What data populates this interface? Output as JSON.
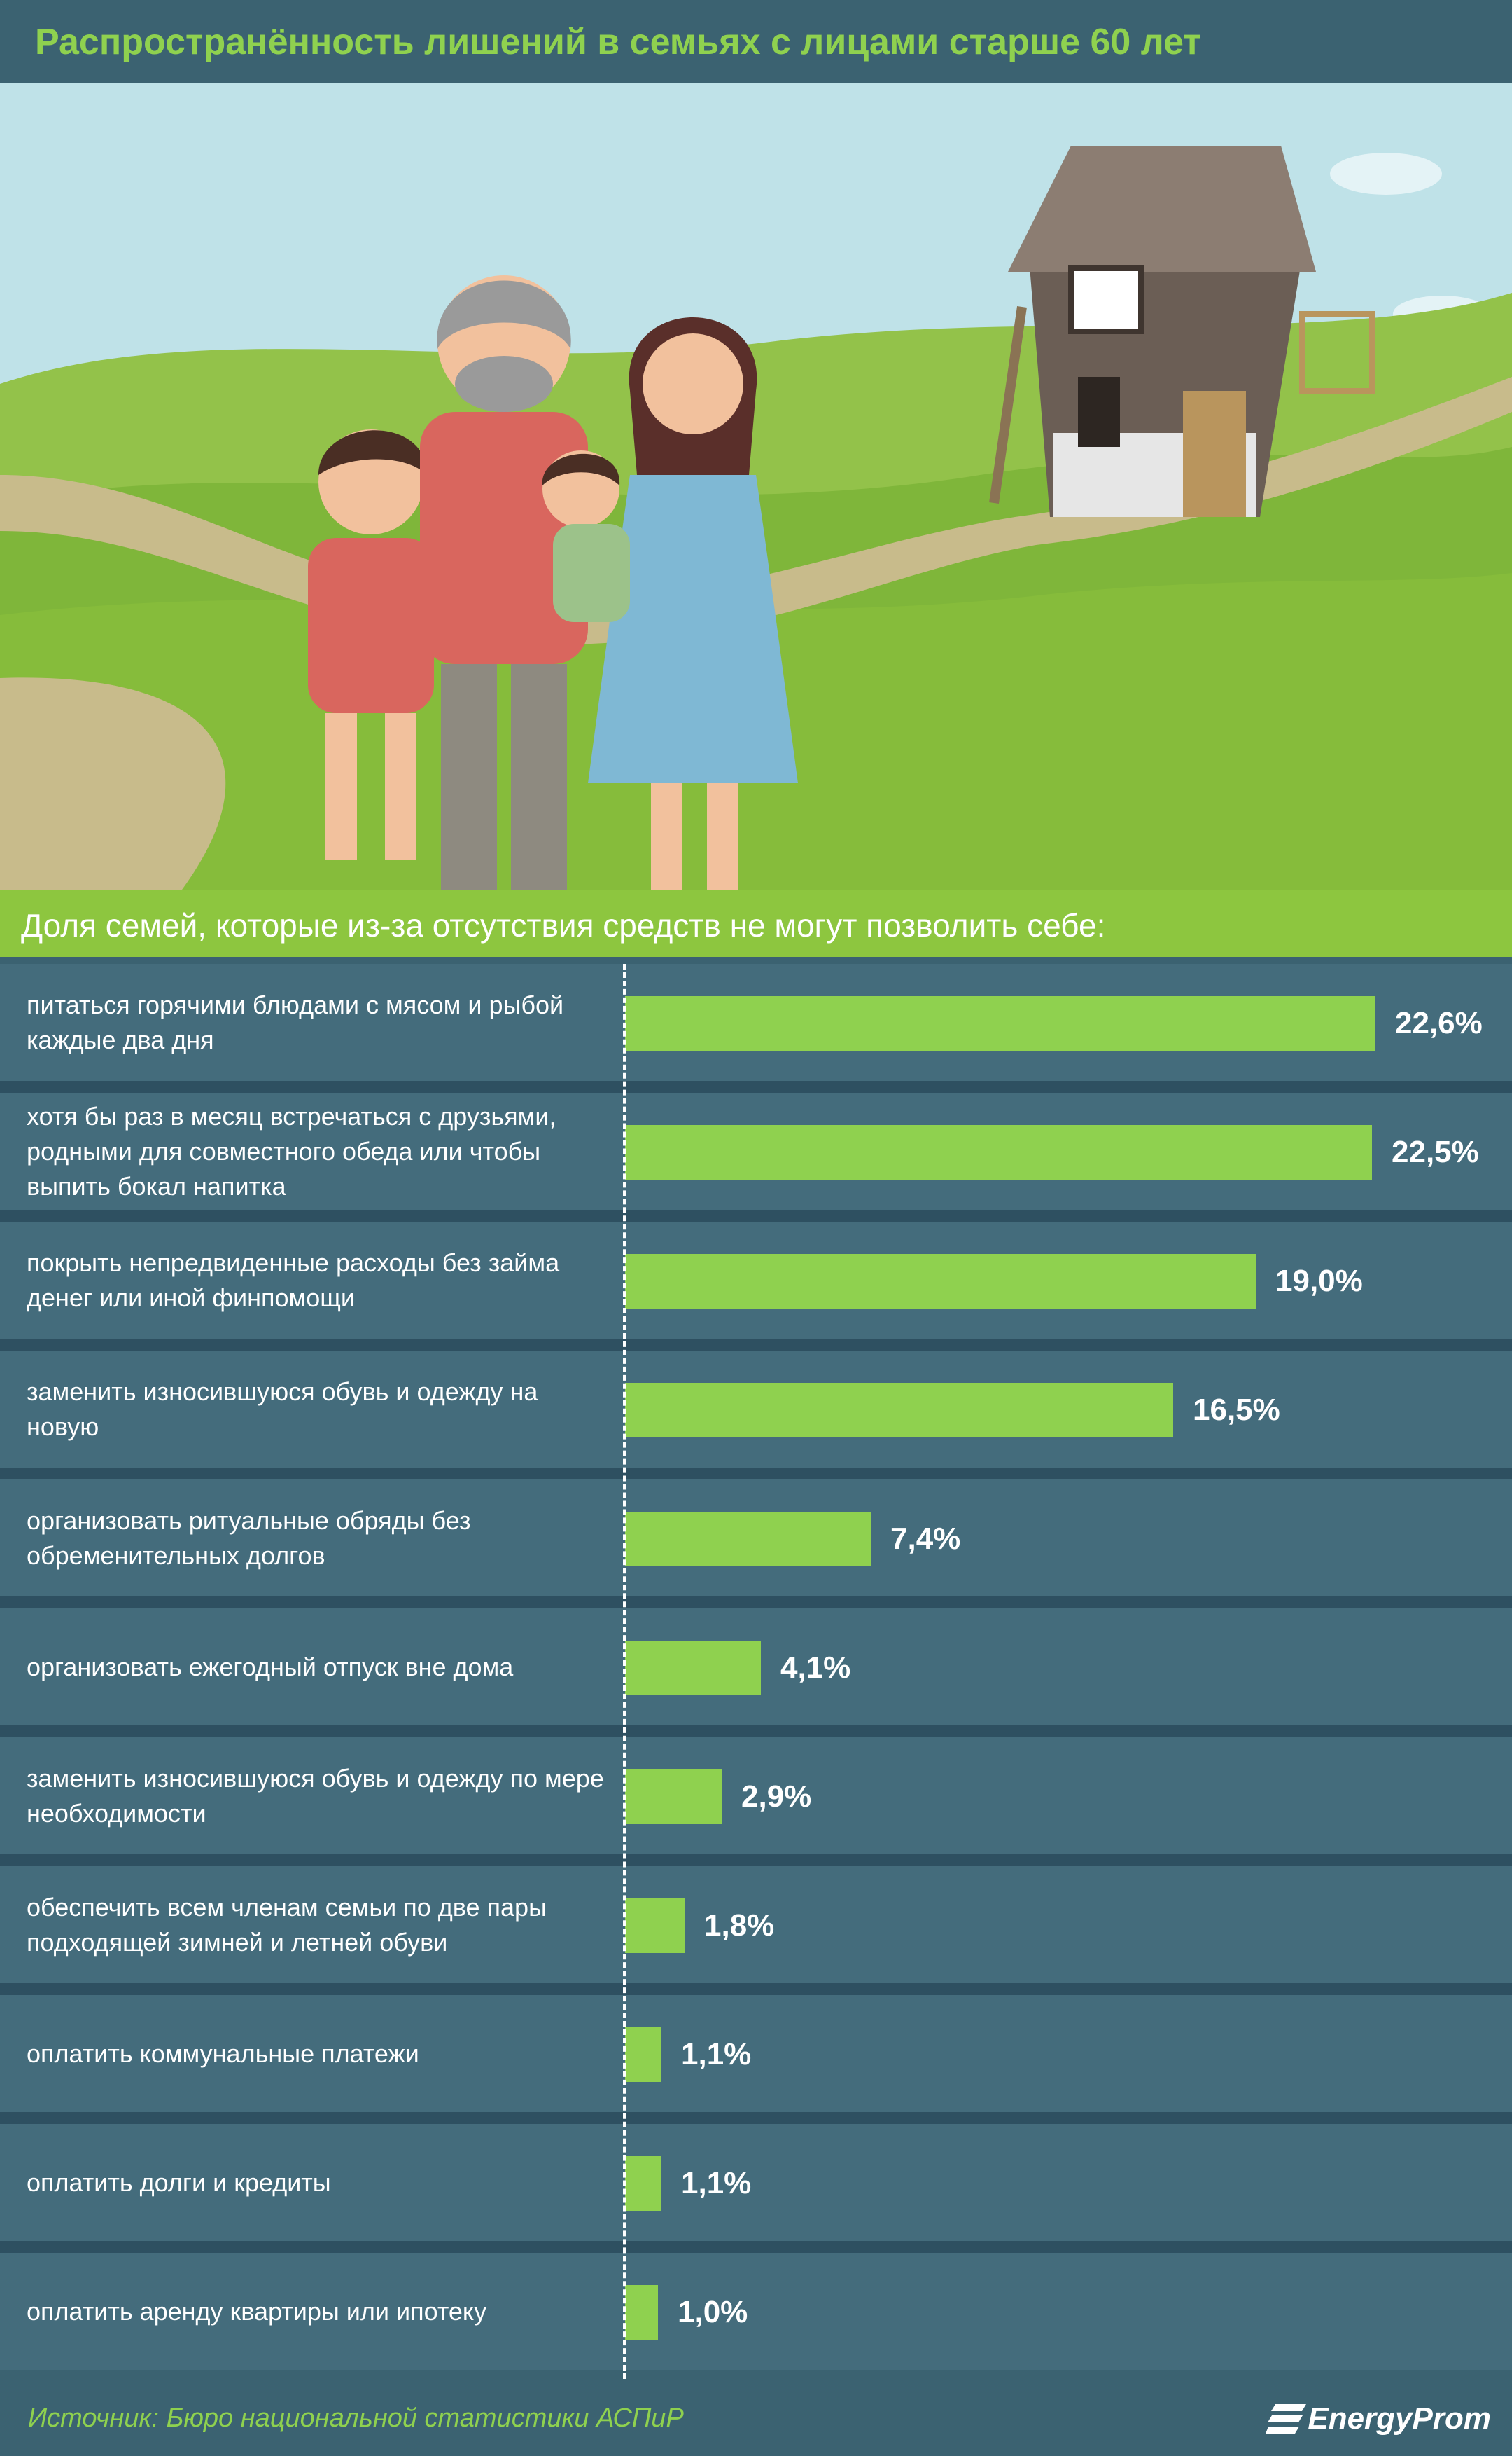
{
  "header": {
    "title": "Распространённость лишений в семьях с лицами старше 60 лет"
  },
  "subtitle": "Доля семей, которые из-за отсутствия средств не могут позволить себе:",
  "footer": {
    "source": "Источник: Бюро национальной статистики АСПиР",
    "logo_text": "EnergyProm"
  },
  "colors": {
    "bar": "#8fd14f",
    "background": "#3b6271",
    "row": "#446c7c",
    "subtitle_bar": "#8dc63f"
  },
  "chart_data": {
    "type": "bar",
    "orientation": "horizontal",
    "categories": [
      "питаться горячими блюдами с мясом и рыбой каждые два дня",
      "хотя бы раз в месяц встречаться с друзьями, родными для совместного обеда или чтобы выпить бокал напитка",
      "покрыть непредвиденные расходы без займа денег или иной финпомощи",
      "заменить износившуюся обувь и одежду на новую",
      "организовать ритуальные обряды без обременительных долгов",
      "организовать ежегодный отпуск вне дома",
      "заменить износившуюся обувь и одежду по мере необходимости",
      "обеспечить всем членам семьи по две пары подходящей зимней и летней обуви",
      "оплатить коммунальные платежи",
      "оплатить долги и кредиты",
      "оплатить аренду квартиры или ипотеку"
    ],
    "values": [
      22.6,
      22.5,
      19.0,
      16.5,
      7.4,
      4.1,
      2.9,
      1.8,
      1.1,
      1.1,
      1.0
    ],
    "value_labels": [
      "22,6%",
      "22,5%",
      "19,0%",
      "16,5%",
      "7,4%",
      "4,1%",
      "2,9%",
      "1,8%",
      "1,1%",
      "1,1%",
      "1,0%"
    ],
    "xlim": [
      0,
      22.6
    ]
  }
}
